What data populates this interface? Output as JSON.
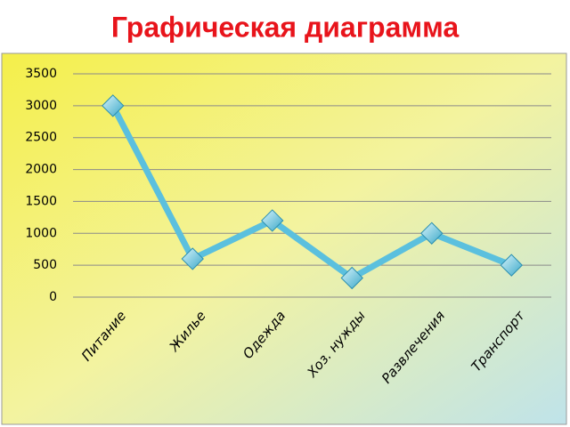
{
  "chart_data": {
    "type": "line",
    "title": "Графическая диаграмма",
    "categories": [
      "Питание",
      "Жилье",
      "Одежда",
      "Хоз. нужды",
      "Развлечения",
      "Транспорт"
    ],
    "values": [
      3000,
      600,
      1200,
      300,
      1000,
      500
    ],
    "color": "#5bc0de",
    "ylim": [
      0,
      3500
    ],
    "yticks": [
      0,
      500,
      1000,
      1500,
      2000,
      2500,
      3000,
      3500
    ],
    "grid": true
  }
}
